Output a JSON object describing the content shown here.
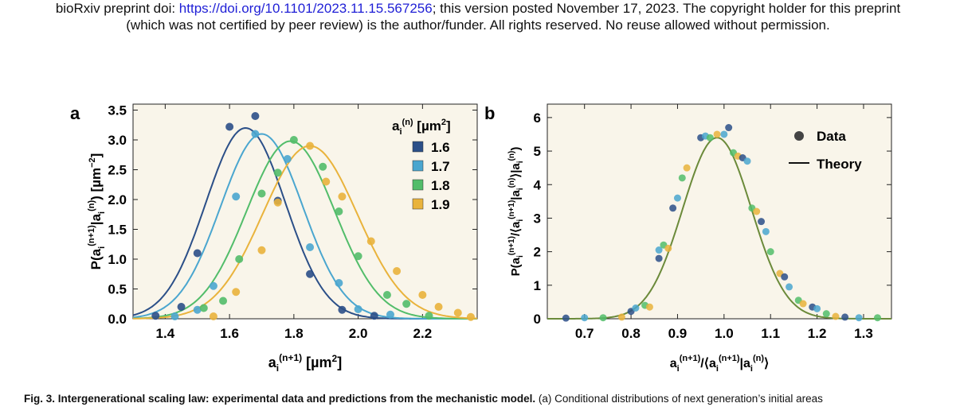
{
  "header": {
    "prefix": "bioRxiv preprint doi: ",
    "doi_link": "https://doi.org/10.1101/2023.11.15.567256",
    "suffix": "; this version posted November 17, 2023. The copyright holder for this preprint",
    "line2": "(which was not certified by peer review) is the author/funder. All rights reserved. No reuse allowed without permission."
  },
  "caption": {
    "bold": "Fig. 3. Intergenerational scaling law: experimental data and predictions from the mechanistic model.",
    "rest": " (a) Conditional distributions of next generation’s initial areas"
  },
  "colors": {
    "plot_bg": "#f9f5ea",
    "s16": "#2b4f88",
    "s17": "#4aa6cf",
    "s18": "#52bd6a",
    "s19": "#e9b33c",
    "theory": "#6b8a3a",
    "b_points": [
      "#2b4f88",
      "#4aa6cf",
      "#52bd6a",
      "#e9b33c"
    ]
  },
  "chart_data": [
    {
      "panel": "a",
      "type": "scatter",
      "xlim": [
        1.3,
        2.37
      ],
      "ylim": [
        0,
        3.6
      ],
      "xticks": [
        "1.4",
        "1.6",
        "1.8",
        "2.0",
        "2.2"
      ],
      "xtick_values": [
        1.4,
        1.6,
        1.8,
        2.0,
        2.2
      ],
      "yticks": [
        "0.0",
        "0.5",
        "1.0",
        "1.5",
        "2.0",
        "2.5",
        "3.0",
        "3.5"
      ],
      "ytick_values": [
        0,
        0.5,
        1.0,
        1.5,
        2.0,
        2.5,
        3.0,
        3.5
      ],
      "xlabel_base": "a",
      "xlabel_sub": "i",
      "xlabel_sup": "(n+1)",
      "xlabel_unit": " [µm",
      "xlabel_unit_sup": "2",
      "xlabel_close": "]",
      "ylabel": "P(a_i^(n+1)|a_i^(n)) [µm^-2]",
      "legend_title_base": "a",
      "legend_title_sub": "i",
      "legend_title_sup": "(n)",
      "legend_title_unit": " [µm",
      "legend_title_unit_sup": "2",
      "legend_title_close": "]",
      "series": [
        {
          "name": "1.6",
          "color": "#2b4f88",
          "mu": 1.65,
          "sigma": 0.124,
          "peak": 3.2,
          "points": [
            [
              1.37,
              0.05
            ],
            [
              1.45,
              0.2
            ],
            [
              1.5,
              1.1
            ],
            [
              1.6,
              3.22
            ],
            [
              1.68,
              3.4
            ],
            [
              1.75,
              1.98
            ],
            [
              1.85,
              0.75
            ],
            [
              1.95,
              0.15
            ],
            [
              2.05,
              0.05
            ]
          ]
        },
        {
          "name": "1.7",
          "color": "#4aa6cf",
          "mu": 1.7,
          "sigma": 0.128,
          "peak": 3.1,
          "points": [
            [
              1.43,
              0.04
            ],
            [
              1.5,
              0.15
            ],
            [
              1.55,
              0.55
            ],
            [
              1.62,
              2.05
            ],
            [
              1.68,
              3.1
            ],
            [
              1.78,
              2.68
            ],
            [
              1.85,
              1.2
            ],
            [
              1.94,
              0.6
            ],
            [
              2.0,
              0.16
            ],
            [
              2.1,
              0.07
            ]
          ]
        },
        {
          "name": "1.8",
          "color": "#52bd6a",
          "mu": 1.79,
          "sigma": 0.137,
          "peak": 2.98,
          "points": [
            [
              1.52,
              0.18
            ],
            [
              1.58,
              0.3
            ],
            [
              1.63,
              1.0
            ],
            [
              1.7,
              2.1
            ],
            [
              1.75,
              2.45
            ],
            [
              1.8,
              3.0
            ],
            [
              1.89,
              2.55
            ],
            [
              1.94,
              1.8
            ],
            [
              2.0,
              1.05
            ],
            [
              2.09,
              0.4
            ],
            [
              2.15,
              0.25
            ],
            [
              2.22,
              0.05
            ]
          ]
        },
        {
          "name": "1.9",
          "color": "#e9b33c",
          "mu": 1.85,
          "sigma": 0.147,
          "peak": 2.9,
          "points": [
            [
              1.55,
              0.04
            ],
            [
              1.62,
              0.45
            ],
            [
              1.7,
              1.15
            ],
            [
              1.75,
              1.95
            ],
            [
              1.85,
              2.9
            ],
            [
              1.9,
              2.3
            ],
            [
              1.95,
              2.05
            ],
            [
              2.04,
              1.3
            ],
            [
              2.12,
              0.8
            ],
            [
              2.2,
              0.4
            ],
            [
              2.25,
              0.2
            ],
            [
              2.31,
              0.1
            ],
            [
              2.35,
              0.03
            ]
          ]
        }
      ]
    },
    {
      "panel": "b",
      "type": "scatter",
      "xlim": [
        0.62,
        1.36
      ],
      "ylim": [
        0,
        6.4
      ],
      "xticks": [
        "0.7",
        "0.8",
        "0.9",
        "1.0",
        "1.1",
        "1.2",
        "1.3"
      ],
      "xtick_values": [
        0.7,
        0.8,
        0.9,
        1.0,
        1.1,
        1.2,
        1.3
      ],
      "yticks": [
        "0",
        "1",
        "2",
        "3",
        "4",
        "5",
        "6"
      ],
      "ytick_values": [
        0,
        1,
        2,
        3,
        4,
        5,
        6
      ],
      "xlabel": "a_i^(n+1)/⟨a_i^(n+1)|a_i^(n)⟩",
      "ylabel": "P(a_i^(n+1)/⟨a_i^(n+1)|a_i^(n)⟩|a_i^(n))",
      "legend": [
        "Data",
        "Theory"
      ],
      "theory": {
        "mu": 0.985,
        "sigma": 0.074,
        "peak": 5.4
      },
      "points": [
        [
          0.66,
          0.02
        ],
        [
          0.7,
          0.03
        ],
        [
          0.74,
          0.03
        ],
        [
          0.78,
          0.05
        ],
        [
          0.8,
          0.22
        ],
        [
          0.81,
          0.32
        ],
        [
          0.83,
          0.4
        ],
        [
          0.84,
          0.35
        ],
        [
          0.86,
          1.8
        ],
        [
          0.86,
          2.05
        ],
        [
          0.87,
          2.2
        ],
        [
          0.88,
          2.1
        ],
        [
          0.89,
          3.3
        ],
        [
          0.9,
          3.6
        ],
        [
          0.91,
          4.2
        ],
        [
          0.92,
          4.5
        ],
        [
          0.95,
          5.4
        ],
        [
          0.96,
          5.45
        ],
        [
          0.97,
          5.4
        ],
        [
          0.985,
          5.5
        ],
        [
          1.01,
          5.7
        ],
        [
          1.0,
          5.5
        ],
        [
          1.02,
          4.95
        ],
        [
          1.03,
          4.85
        ],
        [
          1.04,
          4.8
        ],
        [
          1.05,
          4.7
        ],
        [
          1.06,
          3.3
        ],
        [
          1.07,
          3.2
        ],
        [
          1.08,
          2.9
        ],
        [
          1.09,
          2.6
        ],
        [
          1.1,
          2.0
        ],
        [
          1.12,
          1.35
        ],
        [
          1.13,
          1.25
        ],
        [
          1.14,
          0.95
        ],
        [
          1.16,
          0.55
        ],
        [
          1.17,
          0.45
        ],
        [
          1.19,
          0.35
        ],
        [
          1.2,
          0.3
        ],
        [
          1.22,
          0.15
        ],
        [
          1.24,
          0.07
        ],
        [
          1.26,
          0.05
        ],
        [
          1.29,
          0.03
        ],
        [
          1.33,
          0.03
        ]
      ]
    }
  ]
}
